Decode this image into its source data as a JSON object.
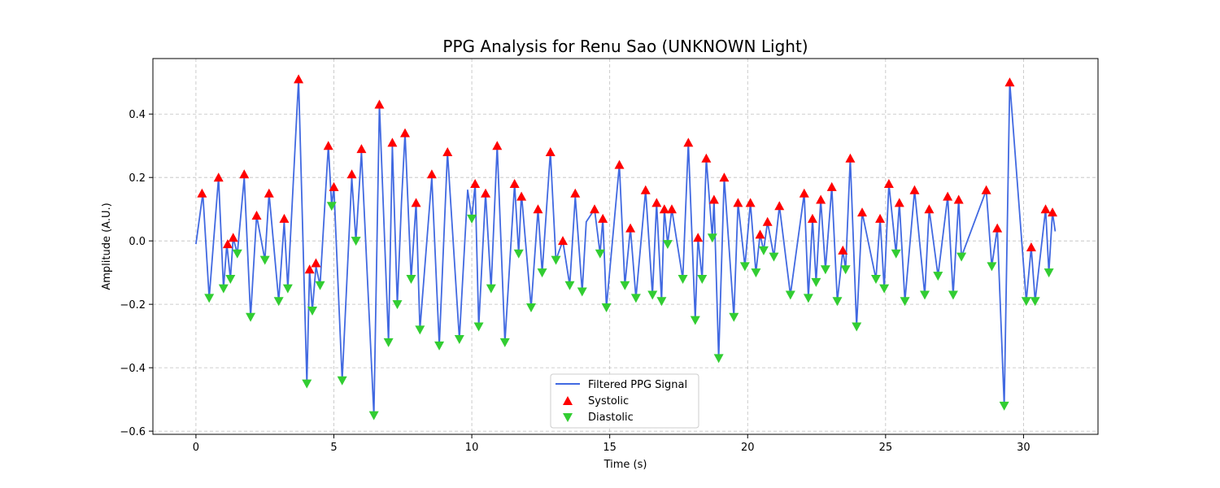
{
  "chart_data": {
    "type": "line",
    "title": "PPG Analysis for Renu Sao (UNKNOWN Light)",
    "xlabel": "Time (s)",
    "ylabel": "Amplitude (A.U.)",
    "xlim": [
      -1.56,
      32.7
    ],
    "ylim": [
      -0.61,
      0.575
    ],
    "xticks": [
      0,
      5,
      10,
      15,
      20,
      25,
      30
    ],
    "yticks": [
      -0.6,
      -0.4,
      -0.2,
      0.0,
      0.2,
      0.4
    ],
    "ytick_labels": [
      "−0.6",
      "−0.4",
      "−0.2",
      "0.0",
      "0.2",
      "0.4"
    ],
    "grid": true,
    "legend_position": "lower-center",
    "colors": {
      "signal": "#4169e1",
      "systolic": "#ff0000",
      "diastolic": "#32cd32"
    },
    "series": [
      {
        "name": "Filtered PPG Signal",
        "kind": "line",
        "x": [
          0.0,
          0.25,
          0.48,
          0.82,
          1.0,
          1.12,
          1.25,
          1.35,
          1.5,
          1.75,
          1.98,
          2.2,
          2.5,
          2.65,
          3.0,
          3.2,
          3.33,
          3.72,
          4.02,
          4.12,
          4.22,
          4.35,
          4.5,
          4.8,
          4.92,
          5.0,
          5.3,
          5.65,
          5.8,
          6.0,
          6.45,
          6.65,
          6.98,
          7.12,
          7.3,
          7.45,
          7.58,
          7.8,
          7.98,
          8.12,
          8.55,
          8.82,
          9.12,
          9.55,
          9.85,
          10.0,
          10.12,
          10.25,
          10.5,
          10.7,
          10.92,
          11.2,
          11.55,
          11.7,
          11.8,
          12.15,
          12.4,
          12.55,
          12.85,
          13.05,
          13.3,
          13.55,
          13.75,
          14.0,
          14.15,
          14.45,
          14.65,
          14.75,
          14.88,
          15.35,
          15.55,
          15.75,
          15.95,
          16.3,
          16.55,
          16.7,
          16.88,
          16.98,
          17.1,
          17.25,
          17.65,
          17.85,
          18.1,
          18.2,
          18.35,
          18.5,
          18.72,
          18.78,
          18.95,
          19.15,
          19.5,
          19.65,
          19.9,
          20.1,
          20.3,
          20.45,
          20.58,
          20.72,
          20.95,
          21.15,
          21.55,
          22.05,
          22.2,
          22.35,
          22.48,
          22.65,
          22.82,
          23.05,
          23.25,
          23.45,
          23.55,
          23.72,
          23.95,
          24.15,
          24.65,
          24.8,
          24.95,
          25.12,
          25.38,
          25.5,
          25.7,
          26.05,
          26.42,
          26.58,
          26.9,
          27.25,
          27.45,
          27.65,
          27.75,
          28.65,
          28.85,
          29.05,
          29.3,
          29.5,
          30.1,
          30.28,
          30.42,
          30.8,
          30.92,
          31.05,
          31.15
        ],
        "y": [
          -0.01,
          0.15,
          -0.18,
          0.2,
          -0.15,
          -0.01,
          -0.12,
          0.01,
          -0.04,
          0.2,
          -0.24,
          0.08,
          -0.06,
          0.15,
          -0.19,
          0.06,
          -0.15,
          0.51,
          -0.45,
          -0.09,
          -0.22,
          -0.08,
          -0.14,
          0.3,
          0.11,
          0.17,
          -0.44,
          0.2,
          0.0,
          0.28,
          -0.55,
          0.43,
          -0.32,
          0.3,
          -0.2,
          0.12,
          0.34,
          -0.12,
          0.12,
          -0.28,
          0.2,
          -0.33,
          0.28,
          -0.31,
          0.16,
          0.07,
          0.18,
          -0.27,
          0.15,
          -0.15,
          0.3,
          -0.32,
          0.18,
          -0.04,
          0.15,
          -0.21,
          0.1,
          -0.1,
          0.28,
          -0.06,
          0.0,
          -0.14,
          0.14,
          -0.16,
          0.06,
          0.1,
          -0.04,
          0.07,
          -0.21,
          0.24,
          -0.14,
          0.04,
          -0.18,
          0.16,
          -0.17,
          0.12,
          -0.19,
          0.1,
          -0.01,
          0.1,
          -0.12,
          0.31,
          -0.25,
          0.01,
          -0.12,
          0.26,
          0.01,
          0.13,
          -0.37,
          0.2,
          -0.24,
          0.12,
          -0.08,
          0.12,
          -0.1,
          0.02,
          -0.03,
          0.06,
          -0.05,
          0.11,
          -0.17,
          0.15,
          -0.18,
          0.07,
          -0.13,
          0.13,
          -0.09,
          0.17,
          -0.19,
          -0.03,
          -0.09,
          0.26,
          -0.27,
          0.09,
          -0.12,
          0.07,
          -0.15,
          0.18,
          -0.04,
          0.12,
          -0.19,
          0.16,
          -0.17,
          0.1,
          -0.11,
          0.14,
          -0.17,
          0.13,
          -0.05,
          0.16,
          -0.08,
          0.04,
          -0.52,
          0.5,
          -0.19,
          -0.02,
          -0.19,
          0.1,
          -0.1,
          0.09,
          0.03
        ]
      },
      {
        "name": "Systolic",
        "kind": "marker-up",
        "x": [
          0.22,
          0.82,
          1.15,
          1.35,
          1.75,
          2.2,
          2.65,
          3.2,
          3.72,
          4.12,
          4.35,
          4.8,
          5.0,
          5.65,
          6.0,
          6.65,
          7.12,
          7.58,
          7.98,
          8.55,
          9.12,
          10.12,
          10.5,
          10.92,
          11.55,
          11.8,
          12.4,
          12.85,
          13.3,
          13.75,
          14.45,
          14.75,
          15.35,
          15.75,
          16.3,
          16.7,
          16.98,
          17.25,
          17.85,
          18.2,
          18.5,
          18.78,
          19.15,
          19.65,
          20.1,
          20.45,
          20.72,
          21.15,
          22.05,
          22.35,
          22.65,
          23.05,
          23.45,
          23.72,
          24.15,
          24.8,
          25.12,
          25.5,
          26.05,
          26.58,
          27.25,
          27.65,
          28.65,
          29.05,
          29.5,
          30.28,
          30.8,
          31.05
        ],
        "y": [
          0.15,
          0.2,
          -0.01,
          0.01,
          0.21,
          0.08,
          0.15,
          0.07,
          0.51,
          -0.09,
          -0.07,
          0.3,
          0.17,
          0.21,
          0.29,
          0.43,
          0.31,
          0.34,
          0.12,
          0.21,
          0.28,
          0.18,
          0.15,
          0.3,
          0.18,
          0.14,
          0.1,
          0.28,
          0.0,
          0.15,
          0.1,
          0.07,
          0.24,
          0.04,
          0.16,
          0.12,
          0.1,
          0.1,
          0.31,
          0.01,
          0.26,
          0.13,
          0.2,
          0.12,
          0.12,
          0.02,
          0.06,
          0.11,
          0.15,
          0.07,
          0.13,
          0.17,
          -0.03,
          0.26,
          0.09,
          0.07,
          0.18,
          0.12,
          0.16,
          0.1,
          0.14,
          0.13,
          0.16,
          0.04,
          0.5,
          -0.02,
          0.1,
          0.09
        ]
      },
      {
        "name": "Diastolic",
        "kind": "marker-down",
        "x": [
          0.48,
          1.0,
          1.25,
          1.5,
          1.98,
          2.5,
          3.0,
          3.33,
          4.02,
          4.22,
          4.5,
          4.92,
          5.3,
          5.8,
          6.45,
          6.98,
          7.3,
          7.8,
          8.12,
          8.82,
          9.55,
          10.0,
          10.25,
          10.7,
          11.2,
          11.7,
          12.15,
          12.55,
          13.05,
          13.55,
          14.0,
          14.65,
          14.88,
          15.55,
          15.95,
          16.55,
          16.88,
          17.1,
          17.65,
          18.1,
          18.35,
          18.72,
          18.95,
          19.5,
          19.9,
          20.3,
          20.58,
          20.95,
          21.55,
          22.2,
          22.48,
          22.82,
          23.25,
          23.55,
          23.95,
          24.65,
          24.95,
          25.38,
          25.7,
          26.42,
          26.9,
          27.45,
          27.75,
          28.85,
          29.3,
          30.1,
          30.42,
          30.92
        ],
        "y": [
          -0.18,
          -0.15,
          -0.12,
          -0.04,
          -0.24,
          -0.06,
          -0.19,
          -0.15,
          -0.45,
          -0.22,
          -0.14,
          0.11,
          -0.44,
          0.0,
          -0.55,
          -0.32,
          -0.2,
          -0.12,
          -0.28,
          -0.33,
          -0.31,
          0.07,
          -0.27,
          -0.15,
          -0.32,
          -0.04,
          -0.21,
          -0.1,
          -0.06,
          -0.14,
          -0.16,
          -0.04,
          -0.21,
          -0.14,
          -0.18,
          -0.17,
          -0.19,
          -0.01,
          -0.12,
          -0.25,
          -0.12,
          0.01,
          -0.37,
          -0.24,
          -0.08,
          -0.1,
          -0.03,
          -0.05,
          -0.17,
          -0.18,
          -0.13,
          -0.09,
          -0.19,
          -0.09,
          -0.27,
          -0.12,
          -0.15,
          -0.04,
          -0.19,
          -0.17,
          -0.11,
          -0.17,
          -0.05,
          -0.08,
          -0.52,
          -0.19,
          -0.19,
          -0.1
        ]
      }
    ]
  }
}
